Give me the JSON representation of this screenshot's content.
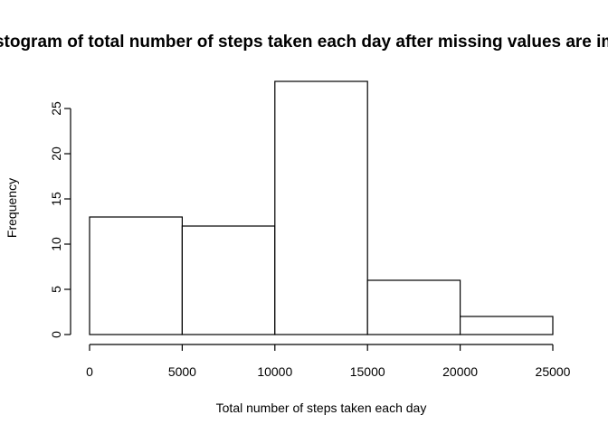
{
  "chart_data": {
    "type": "bar",
    "title": "Histogram of total number of steps taken each day after missing values are imputed",
    "xlabel": "Total number of steps taken each day",
    "ylabel": "Frequency",
    "bins": [
      {
        "from": 0,
        "to": 5000,
        "count": 13
      },
      {
        "from": 5000,
        "to": 10000,
        "count": 12
      },
      {
        "from": 10000,
        "to": 15000,
        "count": 28
      },
      {
        "from": 15000,
        "to": 20000,
        "count": 6
      },
      {
        "from": 20000,
        "to": 25000,
        "count": 2
      }
    ],
    "xlim": [
      0,
      25000
    ],
    "ylim": [
      0,
      28
    ],
    "x_ticks": [
      0,
      5000,
      10000,
      15000,
      20000,
      25000
    ],
    "x_tick_labels": [
      "0",
      "5000",
      "10000",
      "15000",
      "20000",
      "25000"
    ],
    "y_ticks": [
      0,
      5,
      10,
      15,
      20,
      25
    ],
    "y_tick_labels": [
      "0",
      "5",
      "10",
      "15",
      "20",
      "25"
    ],
    "grid": false,
    "colors": {
      "bar_fill": "#ffffff",
      "bar_stroke": "#000000"
    }
  }
}
